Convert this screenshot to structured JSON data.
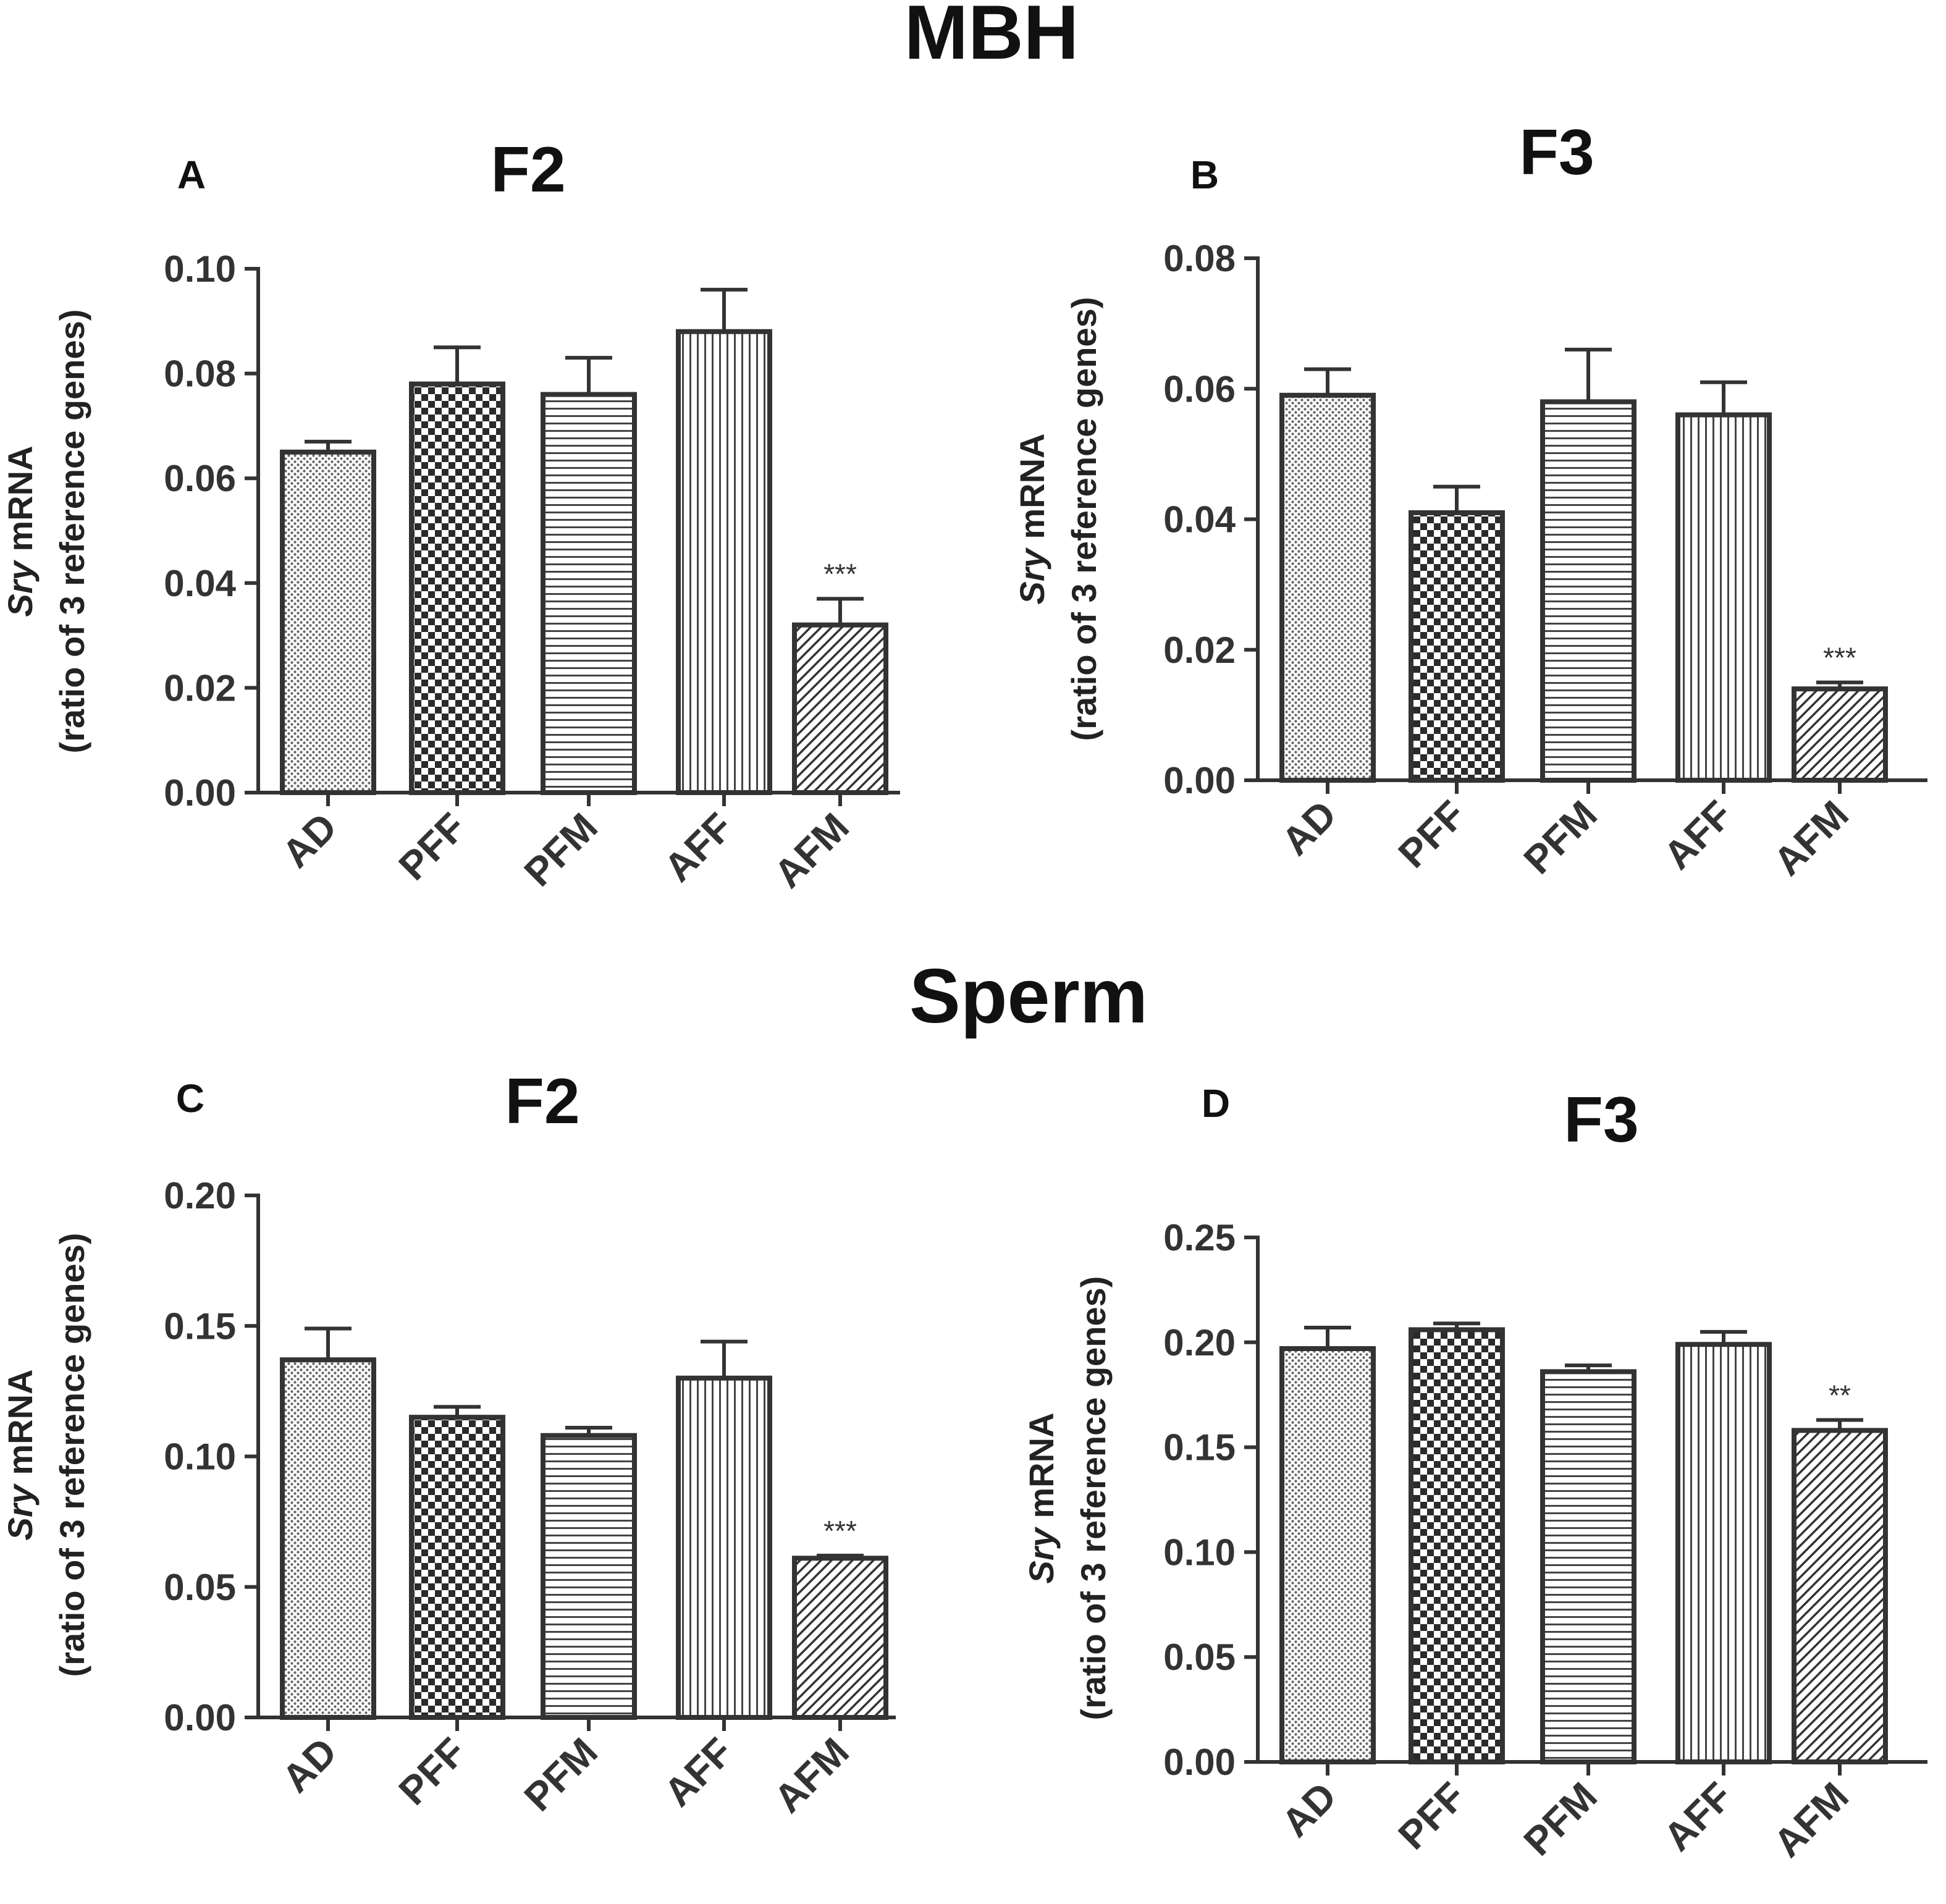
{
  "figure": {
    "section_titles": [
      "MBH",
      "Sperm"
    ]
  },
  "chart_data": [
    {
      "type": "bar",
      "panel": "A",
      "section": "MBH",
      "title": "F2",
      "ylabel_italic": "Sry",
      "ylabel_rest": " mRNA",
      "ylabel_line2": "(ratio of 3 reference genes)",
      "categories": [
        "AD",
        "PFF",
        "PFM",
        "AFF",
        "AFM"
      ],
      "values": [
        0.065,
        0.078,
        0.076,
        0.088,
        0.032
      ],
      "errors": [
        0.002,
        0.007,
        0.007,
        0.008,
        0.005
      ],
      "significance": [
        "",
        "",
        "",
        "",
        "***"
      ],
      "patterns": [
        "dots",
        "checker",
        "hlines",
        "vlines",
        "diag"
      ],
      "ylim": [
        0,
        0.1
      ],
      "yticks": [
        "0.00",
        "0.02",
        "0.04",
        "0.06",
        "0.08",
        "0.10"
      ]
    },
    {
      "type": "bar",
      "panel": "B",
      "section": "MBH",
      "title": "F3",
      "ylabel_italic": "Sry",
      "ylabel_rest": " mRNA",
      "ylabel_line2": "(ratio of 3 reference genes)",
      "categories": [
        "AD",
        "PFF",
        "PFM",
        "AFF",
        "AFM"
      ],
      "values": [
        0.059,
        0.041,
        0.058,
        0.056,
        0.014
      ],
      "errors": [
        0.004,
        0.004,
        0.008,
        0.005,
        0.001
      ],
      "significance": [
        "",
        "",
        "",
        "",
        "***"
      ],
      "patterns": [
        "dots",
        "checker",
        "hlines",
        "vlines",
        "diag"
      ],
      "ylim": [
        0,
        0.08
      ],
      "yticks": [
        "0.00",
        "0.02",
        "0.04",
        "0.06",
        "0.08"
      ]
    },
    {
      "type": "bar",
      "panel": "C",
      "section": "Sperm",
      "title": "F2",
      "ylabel_italic": "Sry",
      "ylabel_rest": " mRNA",
      "ylabel_line2": "(ratio of 3 reference genes)",
      "categories": [
        "AD",
        "PFF",
        "PFM",
        "AFF",
        "AFM"
      ],
      "values": [
        0.137,
        0.115,
        0.108,
        0.13,
        0.061
      ],
      "errors": [
        0.012,
        0.004,
        0.003,
        0.014,
        0.001
      ],
      "significance": [
        "",
        "",
        "",
        "",
        "***"
      ],
      "patterns": [
        "dots",
        "checker",
        "hlines",
        "vlines",
        "diag"
      ],
      "ylim": [
        0,
        0.2
      ],
      "yticks": [
        "0.00",
        "0.05",
        "0.10",
        "0.15",
        "0.20"
      ]
    },
    {
      "type": "bar",
      "panel": "D",
      "section": "Sperm",
      "title": "F3",
      "ylabel_italic": "Sry",
      "ylabel_rest": " mRNA",
      "ylabel_line2": "(ratio of 3 reference genes)",
      "categories": [
        "AD",
        "PFF",
        "PFM",
        "AFF",
        "AFM"
      ],
      "values": [
        0.197,
        0.206,
        0.186,
        0.199,
        0.158
      ],
      "errors": [
        0.01,
        0.003,
        0.003,
        0.006,
        0.005
      ],
      "significance": [
        "",
        "",
        "",
        "",
        "**"
      ],
      "patterns": [
        "dots",
        "checker",
        "hlines",
        "vlines",
        "diag"
      ],
      "ylim": [
        0,
        0.25
      ],
      "yticks": [
        "0.00",
        "0.05",
        "0.10",
        "0.15",
        "0.20",
        "0.25"
      ]
    }
  ]
}
